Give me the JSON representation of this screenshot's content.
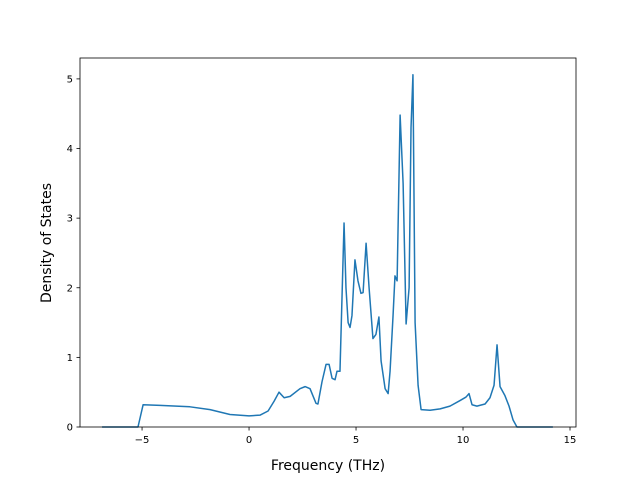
{
  "chart_data": {
    "type": "line",
    "xlabel": "Frequency (THz)",
    "ylabel": "Density of States",
    "xlim": [
      -7.9,
      15.28
    ],
    "ylim": [
      0,
      5.3
    ],
    "xticks": [
      {
        "value": -5,
        "label": "−5"
      },
      0,
      5,
      10,
      15
    ],
    "yticks": [
      0,
      1,
      2,
      3,
      4,
      5
    ],
    "grid": false,
    "series": [
      {
        "name": "DOS",
        "color": "#1f77b4",
        "x": [
          -6.87,
          -5.19,
          -4.95,
          -4.16,
          -2.76,
          -1.82,
          -0.89,
          0,
          0.51,
          0.89,
          1.17,
          1.4,
          1.64,
          1.92,
          2.38,
          2.62,
          2.85,
          3.13,
          3.22,
          3.41,
          3.6,
          3.74,
          3.88,
          4.02,
          4.11,
          4.25,
          4.44,
          4.53,
          4.63,
          4.72,
          4.81,
          4.95,
          5.09,
          5.23,
          5.33,
          5.47,
          5.61,
          5.79,
          5.93,
          6.07,
          6.17,
          6.36,
          6.5,
          6.59,
          6.73,
          6.82,
          6.92,
          7.06,
          7.2,
          7.34,
          7.48,
          7.57,
          7.66,
          7.76,
          7.9,
          8.04,
          8.46,
          8.93,
          9.39,
          9.86,
          10.14,
          10.28,
          10.42,
          10.65,
          11.03,
          11.26,
          11.45,
          11.59,
          11.73,
          11.96,
          12.15,
          12.34,
          12.52,
          14.2
        ],
        "values": [
          0,
          0,
          0.32,
          0.31,
          0.29,
          0.25,
          0.18,
          0.16,
          0.17,
          0.23,
          0.37,
          0.5,
          0.42,
          0.44,
          0.55,
          0.58,
          0.55,
          0.34,
          0.33,
          0.65,
          0.9,
          0.9,
          0.7,
          0.68,
          0.8,
          0.8,
          2.93,
          2.0,
          1.5,
          1.43,
          1.6,
          2.4,
          2.1,
          1.92,
          1.93,
          2.64,
          2.0,
          1.27,
          1.33,
          1.58,
          0.95,
          0.55,
          0.48,
          0.8,
          1.6,
          2.17,
          2.1,
          4.48,
          3.5,
          1.48,
          2.0,
          4.3,
          5.06,
          1.5,
          0.6,
          0.25,
          0.24,
          0.26,
          0.3,
          0.38,
          0.43,
          0.48,
          0.32,
          0.3,
          0.33,
          0.42,
          0.6,
          1.18,
          0.58,
          0.45,
          0.3,
          0.1,
          0,
          0
        ]
      }
    ]
  }
}
